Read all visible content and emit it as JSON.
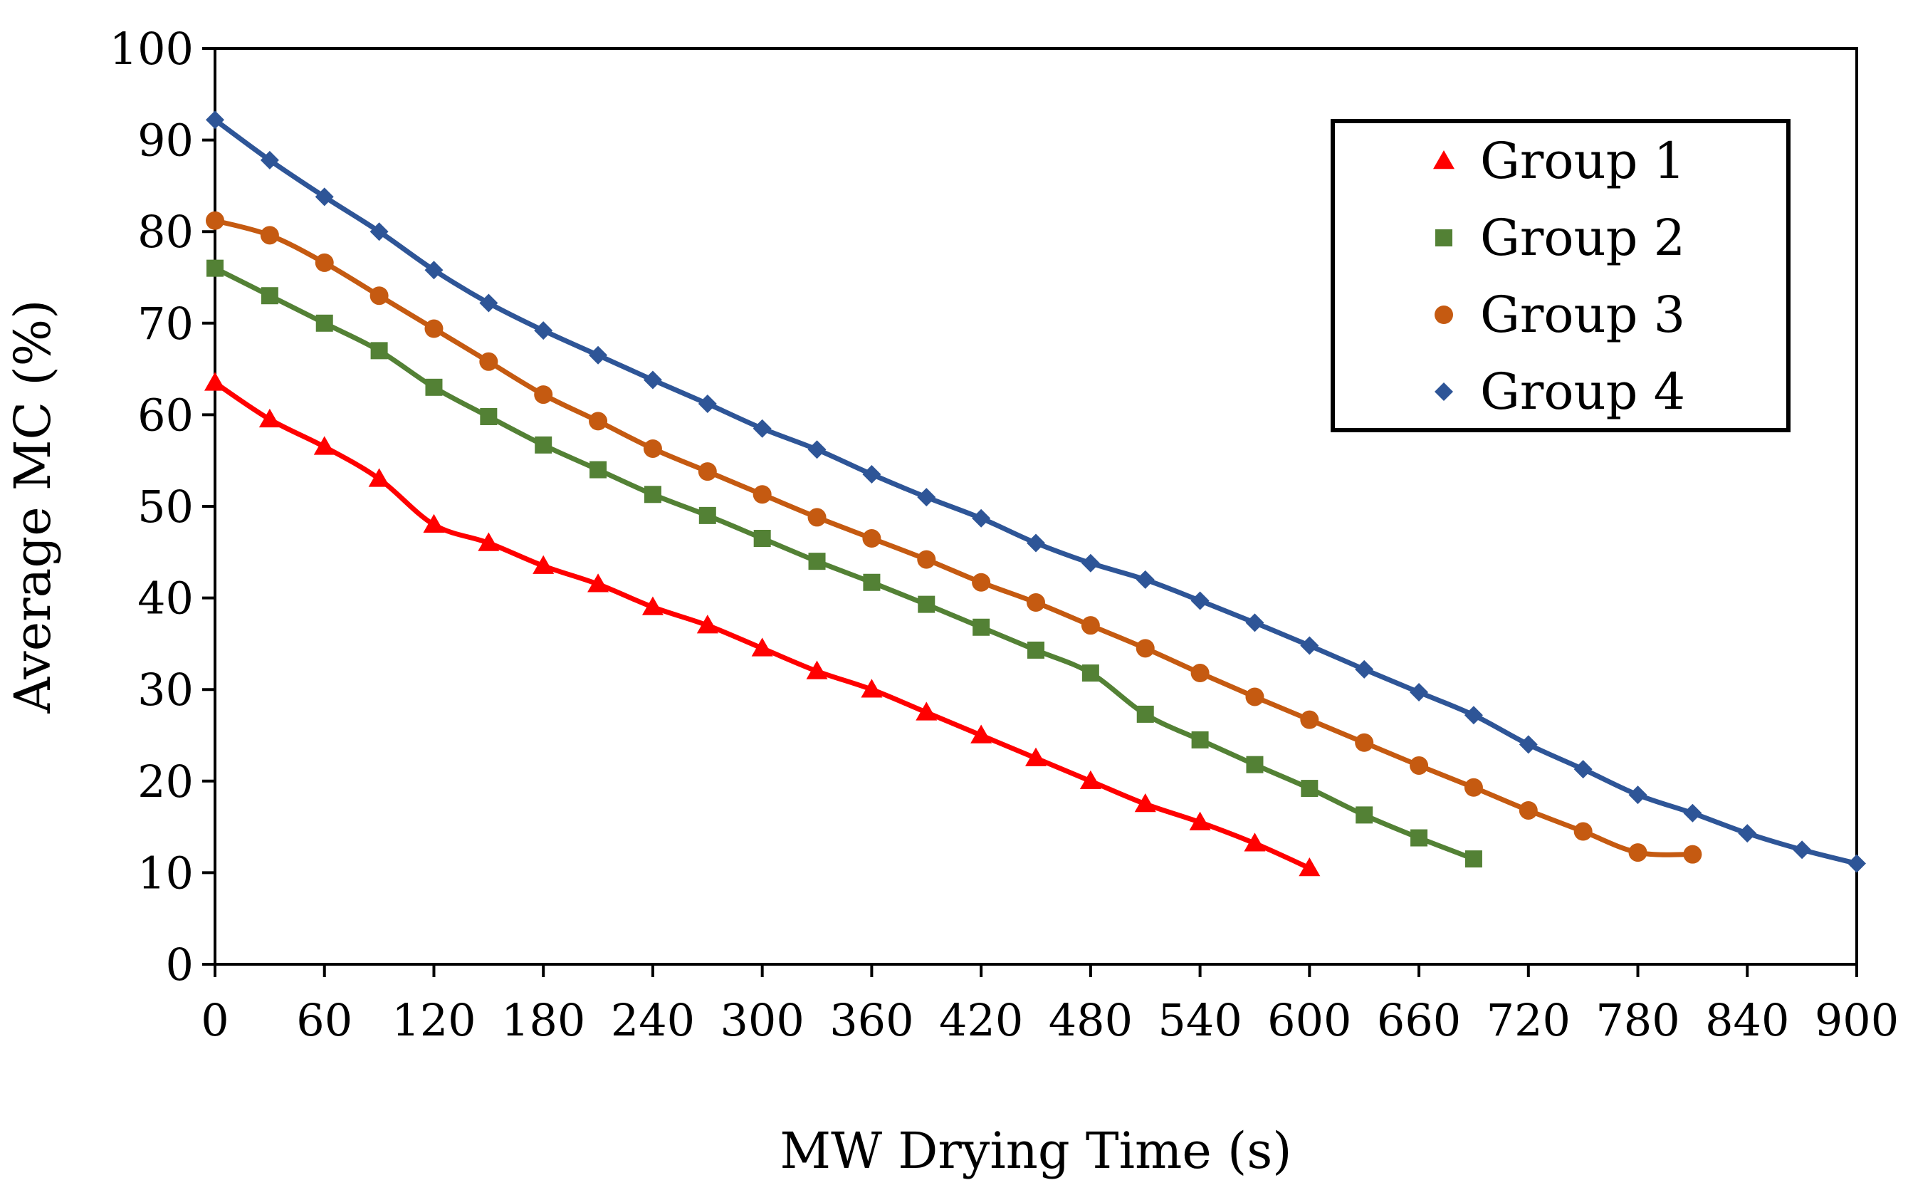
{
  "chart_data": {
    "type": "line",
    "title": "",
    "xlabel": "MW Drying Time (s)",
    "ylabel": "Average MC (%)",
    "xlim": [
      0,
      900
    ],
    "ylim": [
      0,
      100
    ],
    "x_ticks": [
      "0",
      "60",
      "120",
      "180",
      "240",
      "300",
      "360",
      "420",
      "480",
      "540",
      "600",
      "660",
      "720",
      "780",
      "840",
      "900"
    ],
    "y_ticks": [
      "0",
      "10",
      "20",
      "30",
      "40",
      "50",
      "60",
      "70",
      "80",
      "90",
      "100"
    ],
    "grid": false,
    "legend_position": "top-right",
    "series": [
      {
        "name": "Group 1",
        "color": "#ff0000",
        "marker": "triangle",
        "x": [
          0,
          30,
          60,
          90,
          120,
          150,
          180,
          210,
          240,
          270,
          300,
          330,
          360,
          390,
          420,
          450,
          480,
          510,
          540,
          570,
          600
        ],
        "values": [
          63.5,
          59.5,
          56.5,
          53,
          48,
          46,
          43.5,
          41.5,
          39,
          37,
          34.5,
          32,
          30,
          27.5,
          25,
          22.5,
          20,
          17.5,
          15.5,
          13.2,
          10.5
        ]
      },
      {
        "name": "Group 2",
        "color": "#538135",
        "marker": "square",
        "x": [
          0,
          30,
          60,
          90,
          120,
          150,
          180,
          210,
          240,
          270,
          300,
          330,
          360,
          390,
          420,
          450,
          480,
          510,
          540,
          570,
          600,
          630,
          660,
          690
        ],
        "values": [
          76,
          73,
          70,
          67,
          63,
          59.8,
          56.7,
          54,
          51.3,
          49,
          46.5,
          44,
          41.7,
          39.3,
          36.8,
          34.3,
          31.8,
          27.3,
          24.5,
          21.8,
          19.2,
          16.3,
          13.8,
          11.5
        ]
      },
      {
        "name": "Group 3",
        "color": "#c55a11",
        "marker": "circle",
        "x": [
          0,
          30,
          60,
          90,
          120,
          150,
          180,
          210,
          240,
          270,
          300,
          330,
          360,
          390,
          420,
          450,
          480,
          510,
          540,
          570,
          600,
          630,
          660,
          690,
          720,
          750,
          780,
          810
        ],
        "values": [
          81.2,
          79.6,
          76.6,
          73,
          69.4,
          65.8,
          62.2,
          59.3,
          56.3,
          53.8,
          51.3,
          48.8,
          46.5,
          44.2,
          41.7,
          39.5,
          37,
          34.5,
          31.8,
          29.2,
          26.7,
          24.2,
          21.7,
          19.3,
          16.8,
          14.5,
          12.2,
          12
        ]
      },
      {
        "name": "Group 4",
        "color": "#2e5597",
        "marker": "diamond",
        "x": [
          0,
          30,
          60,
          90,
          120,
          150,
          180,
          210,
          240,
          270,
          300,
          330,
          360,
          390,
          420,
          450,
          480,
          510,
          540,
          570,
          600,
          630,
          660,
          690,
          720,
          750,
          780,
          810,
          840,
          870,
          900
        ],
        "values": [
          92.2,
          87.8,
          83.8,
          80,
          75.8,
          72.2,
          69.2,
          66.5,
          63.8,
          61.2,
          58.5,
          56.2,
          53.5,
          51,
          48.7,
          46,
          43.8,
          42,
          39.7,
          37.3,
          34.8,
          32.2,
          29.7,
          27.2,
          24,
          21.3,
          18.5,
          16.5,
          14.3,
          12.5,
          11
        ]
      }
    ]
  }
}
